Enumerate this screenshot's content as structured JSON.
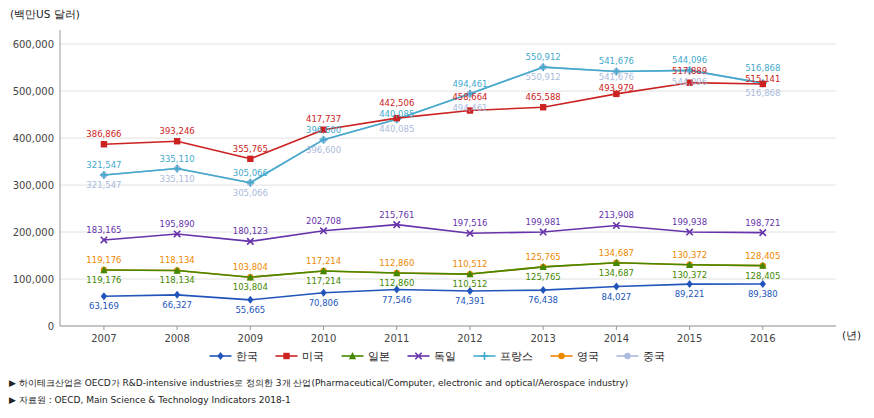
{
  "chart_data": {
    "type": "line",
    "x": [
      2007,
      2008,
      2009,
      2010,
      2011,
      2012,
      2013,
      2014,
      2015,
      2016
    ],
    "xlim": [
      2006.4,
      2017.0
    ],
    "xticks": [
      2007,
      2008,
      2009,
      2010,
      2011,
      2012,
      2013,
      2014,
      2015,
      2016
    ],
    "ylim": [
      0,
      630000
    ],
    "yticks": [
      0,
      {
        "value": 100000,
        "label": "100,000"
      },
      {
        "value": 200000,
        "label": "200,000"
      },
      {
        "value": 300000,
        "label": "300,000"
      },
      {
        "value": 400000,
        "label": "400,000"
      },
      {
        "value": 500000,
        "label": "500,000"
      },
      {
        "value": 600000,
        "label": "600,000"
      }
    ],
    "y_label": "(백만US 달러)",
    "x_label": "(년)",
    "annotations": [
      "▶ 하이테크산업은 OECD가 R&D-intensive industries로 정의한 3개 산업(Pharmaceutical/Computer, electronic and optical/Aerospace industry)",
      "▶ 자료원 : OECD, Main Science & Technology Indicators 2018-1"
    ],
    "grid": true,
    "legend": "bottom",
    "data_labels": true,
    "series": [
      {
        "name": "한국",
        "color": "#2255bb",
        "marker": "diamond",
        "values": [
          63169,
          66327,
          55665,
          70806,
          77546,
          74391,
          76438,
          84027,
          89221,
          89380
        ],
        "value_labels": [
          "63,169",
          "66,327",
          "55,665",
          "70,806",
          "77,546",
          "74,391",
          "76,438",
          "84,027",
          "89,221",
          "89,380"
        ]
      },
      {
        "name": "미국",
        "color": "#cc2222",
        "marker": "square",
        "values": [
          386866,
          393246,
          355765,
          417737,
          442506,
          458664,
          465588,
          493979,
          517889,
          515141
        ],
        "value_labels": [
          "386,866",
          "393,246",
          "355,765",
          "417,737",
          "442,506",
          "458,664",
          "465,588",
          "493,979",
          "517,889",
          "515,141"
        ]
      },
      {
        "name": "일본",
        "color": "#448800",
        "marker": "triangle",
        "values": [
          119176,
          118134,
          103804,
          117214,
          112860,
          110512,
          125765,
          134687,
          130372,
          128405
        ],
        "value_labels": [
          "119,176",
          "118,134",
          "103,804",
          "117,214",
          "112,860",
          "110,512",
          "125,765",
          "134,687",
          "130,372",
          "128,405"
        ]
      },
      {
        "name": "독일",
        "color": "#6633aa",
        "marker": "x",
        "values": [
          183165,
          195890,
          180123,
          202708,
          215761,
          197516,
          199981,
          213908,
          199938,
          198721
        ],
        "value_labels": [
          "183,165",
          "195,890",
          "180,123",
          "202,708",
          "215,761",
          "197,516",
          "199,981",
          "213,908",
          "199,938",
          "198,721"
        ]
      },
      {
        "name": "프랑스",
        "color": "#44aacc",
        "marker": "plus",
        "values": [
          321547,
          335110,
          305066,
          396600,
          440085,
          494461,
          550912,
          541676,
          544096,
          516868
        ],
        "value_labels": [
          "321,547",
          "335,110",
          "305,066",
          "396,600",
          "440,085",
          "494,461",
          "550,912",
          "541,676",
          "544,096",
          "516,868"
        ]
      },
      {
        "name": "영국",
        "color": "#ee8800",
        "marker": "circle",
        "values": [
          119176,
          118134,
          103804,
          117214,
          112860,
          110512,
          125765,
          134687,
          130372,
          128405
        ],
        "value_labels": [
          "119,176",
          "118,134",
          "103,804",
          "117,214",
          "112,860",
          "110,512",
          "125,765",
          "134,687",
          "130,372",
          "128,405"
        ]
      },
      {
        "name": "중국",
        "color": "#aabbdd",
        "marker": "circle",
        "values": [
          321547,
          335110,
          305066,
          396600,
          440085,
          494461,
          550912,
          541676,
          544096,
          516868
        ],
        "value_labels": [
          "321,547",
          "335,110",
          "305,066",
          "396,600",
          "440,085",
          "494,461",
          "550,912",
          "541,676",
          "544,096",
          "516,868"
        ]
      }
    ]
  }
}
